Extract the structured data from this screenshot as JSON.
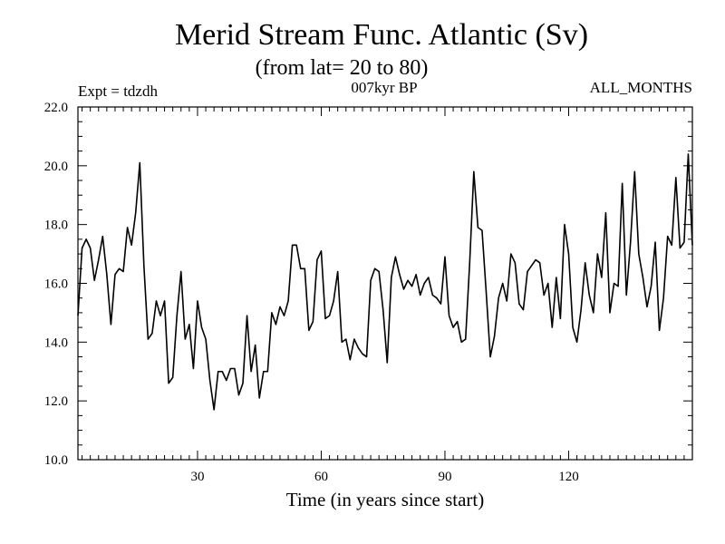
{
  "chart_data": {
    "type": "line",
    "title": "Merid Stream Func. Atlantic (Sv)",
    "subtitle": "(from lat= 20 to 80)",
    "annotation_left": "Expt = tdzdh",
    "annotation_center": "007kyr BP",
    "annotation_right": "ALL_MONTHS",
    "xlabel": "Time (in years since start)",
    "ylabel": "",
    "xlim": [
      1,
      150
    ],
    "ylim": [
      10.0,
      22.0
    ],
    "x_ticks": [
      30,
      60,
      90,
      120
    ],
    "y_ticks": [
      10.0,
      12.0,
      14.0,
      16.0,
      18.0,
      20.0,
      22.0
    ],
    "y_tick_labels": [
      "10.0",
      "12.0",
      "14.0",
      "16.0",
      "18.0",
      "20.0",
      "22.0"
    ],
    "x_start": 1,
    "x_step": 1,
    "series": [
      {
        "name": "Merid Stream Func. Atlantic",
        "values": [
          14.9,
          17.2,
          17.5,
          17.2,
          16.1,
          16.8,
          17.6,
          16.3,
          14.6,
          16.3,
          16.5,
          16.4,
          17.9,
          17.3,
          18.4,
          20.1,
          16.6,
          14.1,
          14.3,
          15.4,
          14.9,
          15.4,
          12.6,
          12.8,
          14.9,
          16.4,
          14.1,
          14.6,
          13.1,
          15.4,
          14.5,
          14.1,
          12.7,
          11.7,
          13.0,
          13.0,
          12.7,
          13.1,
          13.1,
          12.2,
          12.6,
          14.9,
          13.0,
          13.9,
          12.1,
          13.0,
          13.0,
          15.0,
          14.6,
          15.2,
          14.9,
          15.4,
          17.3,
          17.3,
          16.5,
          16.5,
          14.4,
          14.7,
          16.8,
          17.1,
          14.8,
          14.9,
          15.4,
          16.4,
          14.0,
          14.1,
          13.4,
          14.1,
          13.8,
          13.6,
          13.5,
          16.1,
          16.5,
          16.4,
          15.1,
          13.3,
          16.2,
          16.9,
          16.3,
          15.8,
          16.1,
          15.9,
          16.3,
          15.6,
          16.0,
          16.2,
          15.6,
          15.5,
          15.3,
          16.9,
          14.9,
          14.5,
          14.7,
          14.0,
          14.1,
          16.7,
          19.8,
          17.9,
          17.8,
          15.7,
          13.5,
          14.2,
          15.5,
          16.0,
          15.4,
          17.0,
          16.7,
          15.3,
          15.1,
          16.4,
          16.6,
          16.8,
          16.7,
          15.6,
          16.0,
          14.5,
          16.2,
          14.8,
          18.0,
          17.0,
          14.5,
          14.0,
          15.1,
          16.7,
          15.6,
          15.0,
          17.0,
          16.2,
          18.4,
          15.0,
          16.0,
          15.9,
          19.4,
          15.6,
          17.4,
          19.8,
          17.0,
          16.2,
          15.2,
          15.9,
          17.4,
          14.4,
          15.5,
          17.6,
          17.3,
          19.6,
          17.2,
          17.4,
          20.4,
          17.3
        ]
      }
    ]
  }
}
